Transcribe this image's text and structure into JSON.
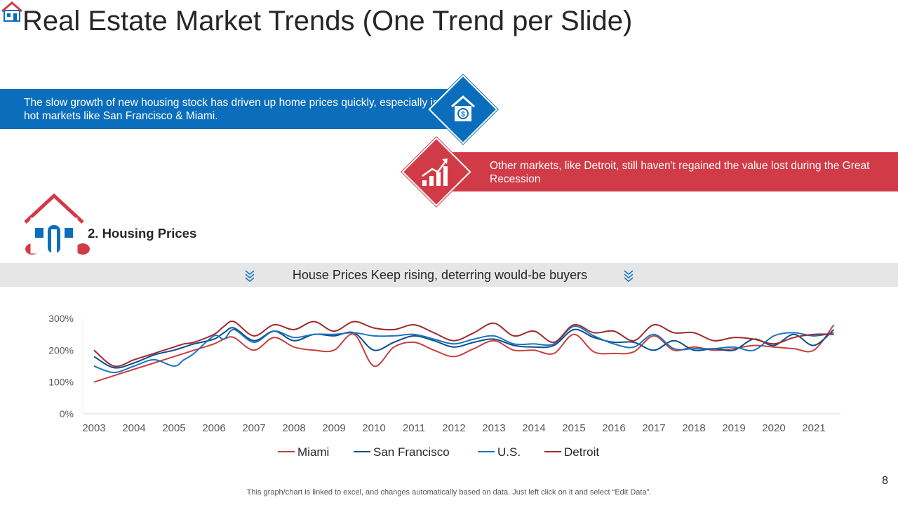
{
  "title": "Real Estate Market Trends (One Trend per Slide)",
  "banner_blue": {
    "text": "The slow growth of new housing stock has driven up home prices quickly, especially in hot markets like San Francisco & Miami.",
    "icon": "house-dollar-icon"
  },
  "banner_red": {
    "text": "Other markets, like Detroit, still haven't regained the value lost during the Great Recession",
    "icon": "growth-chart-icon"
  },
  "section": {
    "label": "2. Housing Prices",
    "icon": "house-icon"
  },
  "callout": {
    "text": "House Prices Keep rising, deterring would-be buyers",
    "icon": "chevrons-down-icon"
  },
  "colors": {
    "blue": "#0a6ebd",
    "red": "#d13b47",
    "miami": "#c6403f",
    "san_francisco": "#0b4f8a",
    "us": "#1d73bf",
    "detroit": "#9c2a2f"
  },
  "chart_data": {
    "type": "line",
    "title": "",
    "xlabel": "",
    "ylabel": "",
    "x": [
      2003,
      2003.5,
      2004,
      2004.5,
      2005,
      2005.25,
      2005.5,
      2006,
      2006.25,
      2006.5,
      2007,
      2007.5,
      2008,
      2008.5,
      2009,
      2009.5,
      2010,
      2010.5,
      2011,
      2011.5,
      2012,
      2012.5,
      2013,
      2013.5,
      2014,
      2014.5,
      2015,
      2015.5,
      2016,
      2016.5,
      2017,
      2017.5,
      2018,
      2018.5,
      2019,
      2019.5,
      2020,
      2020.5,
      2021,
      2021.5
    ],
    "x_tick_labels": [
      "2003",
      "2004",
      "2005",
      "2006",
      "2007",
      "2008",
      "2009",
      "2010",
      "2011",
      "2012",
      "2013",
      "2014",
      "2015",
      "2016",
      "2017",
      "2018",
      "2019",
      "2020",
      "2021"
    ],
    "y_tick_labels": [
      "0%",
      "100%",
      "200%",
      "300%"
    ],
    "ylim": [
      0,
      300
    ],
    "series": [
      {
        "name": "Miami",
        "values": [
          100,
          120,
          140,
          160,
          180,
          190,
          200,
          220,
          235,
          240,
          200,
          240,
          210,
          200,
          200,
          250,
          150,
          210,
          225,
          200,
          180,
          205,
          230,
          200,
          200,
          190,
          250,
          195,
          190,
          195,
          245,
          200,
          210,
          200,
          205,
          215,
          210,
          205,
          200,
          280
        ]
      },
      {
        "name": "San Francisco",
        "values": [
          180,
          145,
          160,
          185,
          200,
          210,
          220,
          235,
          255,
          270,
          230,
          260,
          230,
          250,
          245,
          255,
          200,
          225,
          245,
          230,
          210,
          225,
          235,
          215,
          210,
          215,
          265,
          240,
          225,
          225,
          200,
          230,
          200,
          205,
          200,
          235,
          215,
          250,
          215,
          265
        ]
      },
      {
        "name": "U.S.",
        "values": [
          150,
          130,
          150,
          170,
          150,
          170,
          190,
          245,
          235,
          265,
          225,
          260,
          240,
          250,
          250,
          255,
          245,
          245,
          250,
          235,
          220,
          235,
          245,
          220,
          220,
          220,
          275,
          245,
          220,
          210,
          250,
          205,
          205,
          205,
          210,
          200,
          245,
          255,
          245,
          255
        ]
      },
      {
        "name": "Detroit",
        "values": [
          200,
          150,
          170,
          190,
          210,
          220,
          225,
          250,
          275,
          290,
          245,
          280,
          265,
          290,
          260,
          290,
          270,
          265,
          280,
          255,
          230,
          255,
          285,
          245,
          260,
          225,
          280,
          255,
          260,
          230,
          280,
          255,
          255,
          230,
          240,
          235,
          220,
          240,
          250,
          250
        ]
      }
    ]
  },
  "footnote": "This graph/chart is linked to excel, and changes automatically based on data. Just left click on it and select “Edit Data”.",
  "page_number": "8"
}
